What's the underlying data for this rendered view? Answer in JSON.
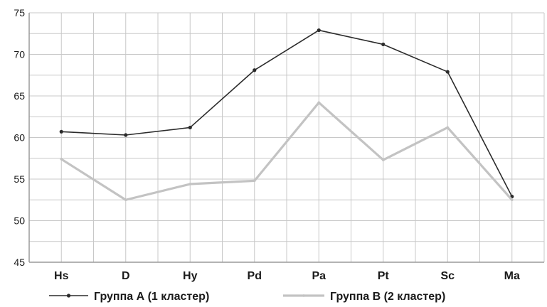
{
  "chart_data": {
    "type": "line",
    "categories": [
      "Hs",
      "D",
      "Hy",
      "Pd",
      "Pa",
      "Pt",
      "Sc",
      "Ma"
    ],
    "series": [
      {
        "name": "Группа А (1 кластер)",
        "color": "#2b2b2b",
        "values": [
          60.7,
          60.3,
          61.2,
          68.1,
          72.9,
          71.2,
          67.9,
          52.9
        ]
      },
      {
        "name": "Группа В (2 кластер)",
        "color": "#c3c3c3",
        "values": [
          57.4,
          52.5,
          54.4,
          54.8,
          64.2,
          57.3,
          61.2,
          52.5
        ]
      }
    ],
    "ylim": [
      45,
      75
    ],
    "yticks": [
      45,
      50,
      55,
      60,
      65,
      70,
      75
    ],
    "grid": true,
    "legend_position": "bottom"
  }
}
